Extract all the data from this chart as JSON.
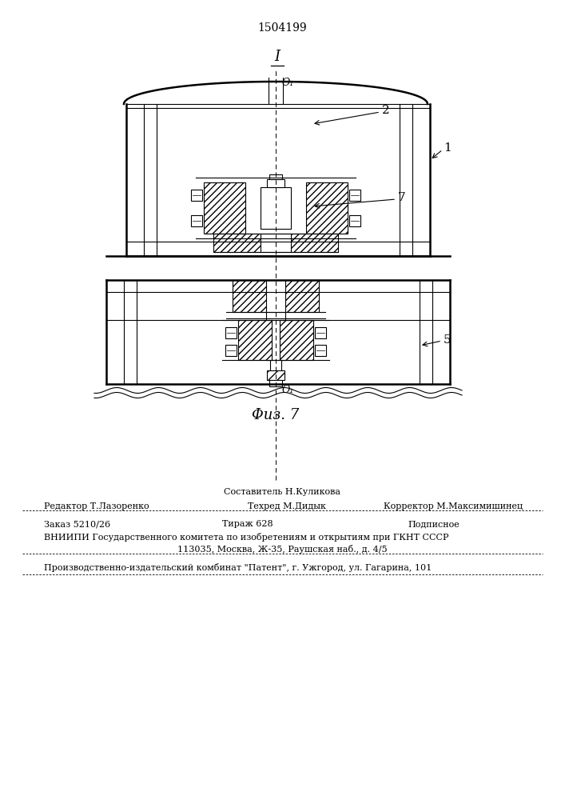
{
  "patent_number": "1504199",
  "fig_label": "Φиз. 7",
  "footer": {
    "sostavitel": "Составитель Н.Куликова",
    "redaktor_label": "Редактор Т.Лазоренко",
    "tehred_label": "Техред М.Дидык",
    "korrektor_label": "Корректор М.Максимишинец",
    "zakaz": "Заказ 5210/26",
    "tirazh": "Тираж 628",
    "podpisnoe": "Подписное",
    "vniip": "ВНИИПИ Государственного комитета по изобретениям и открытиям при ГКНТ СССР",
    "address": "113035, Москва, Ж-35, Раушская наб., д. 4/5",
    "proizv": "Производственно-издательский комбинат \"Патент\", г. Ужгород, ул. Гагарина, 101"
  },
  "bg_color": "#ffffff",
  "line_color": "#000000"
}
